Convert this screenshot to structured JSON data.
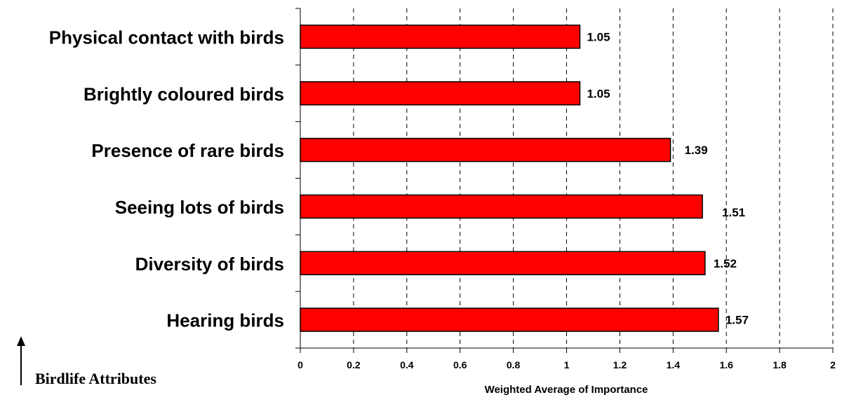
{
  "chart_data": {
    "type": "bar",
    "orientation": "horizontal",
    "categories": [
      "Physical contact with birds",
      "Brightly coloured birds",
      "Presence of rare birds",
      "Seeing lots of birds",
      "Diversity of birds",
      "Hearing birds"
    ],
    "values": [
      1.05,
      1.05,
      1.39,
      1.51,
      1.52,
      1.57
    ],
    "value_labels": [
      "1.05",
      "1.05",
      "1.39",
      "1.51",
      "1.52",
      "1.57"
    ],
    "xlabel": "Weighted Average of Importance",
    "ylabel": "Birdlife Attributes",
    "xlim": [
      0,
      2
    ],
    "x_ticks": [
      "0",
      "0.2",
      "0.4",
      "0.6",
      "0.8",
      "1",
      "1.2",
      "1.4",
      "1.6",
      "1.8",
      "2"
    ],
    "grid": "vertical dashed",
    "bar_color": "#ff0000"
  }
}
